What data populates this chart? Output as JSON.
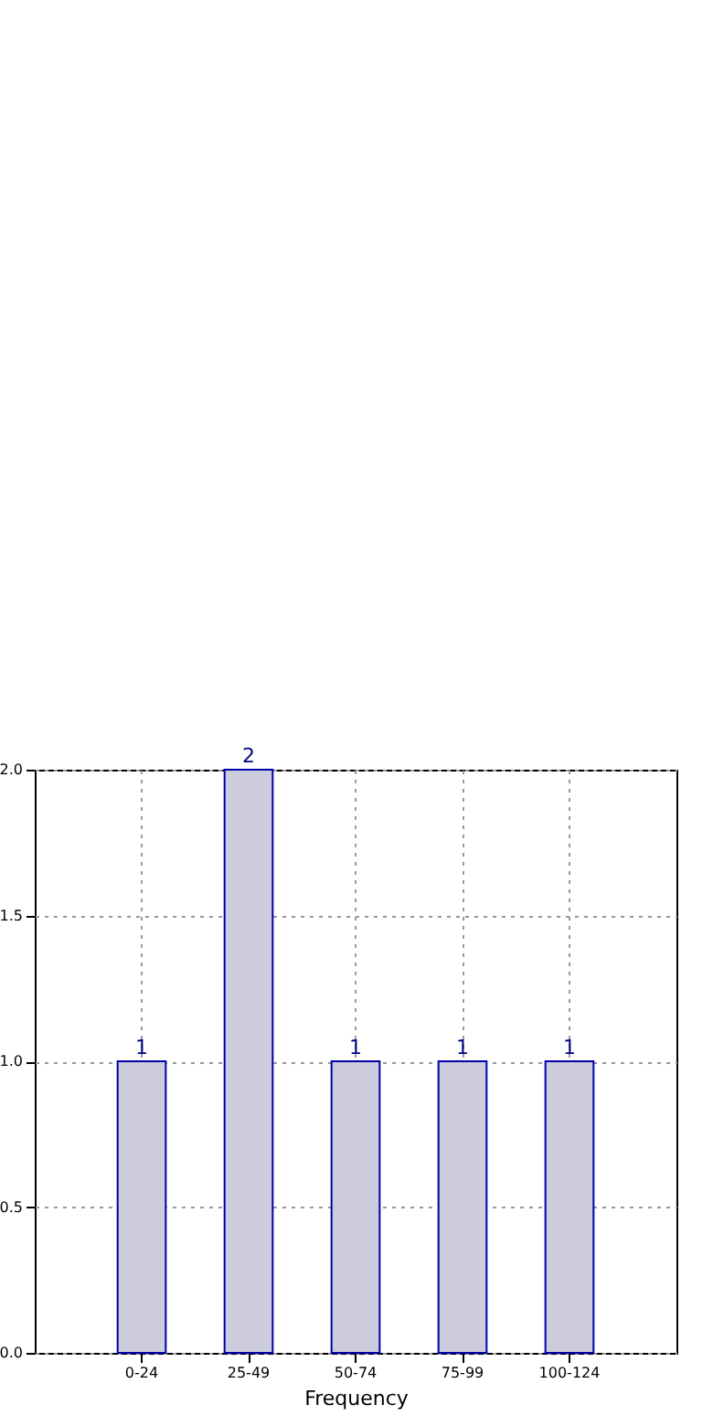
{
  "chart_data": {
    "type": "bar",
    "xlabel": "Frequency",
    "categories": [
      "0-24",
      "25-49",
      "50-74",
      "75-99",
      "100-124"
    ],
    "values": [
      1,
      2,
      1,
      1,
      1
    ],
    "color": "#ccccdd",
    "ylim": [
      0,
      2
    ],
    "yticks": [
      {
        "value": 0,
        "label": "0.0"
      },
      {
        "value": 0.5,
        "label": "0.5"
      },
      {
        "value": 1,
        "label": "1.0"
      },
      {
        "value": 1.5,
        "label": "1.5"
      },
      {
        "value": 2,
        "label": "2.0"
      }
    ],
    "grid": true,
    "data_labels": true
  }
}
